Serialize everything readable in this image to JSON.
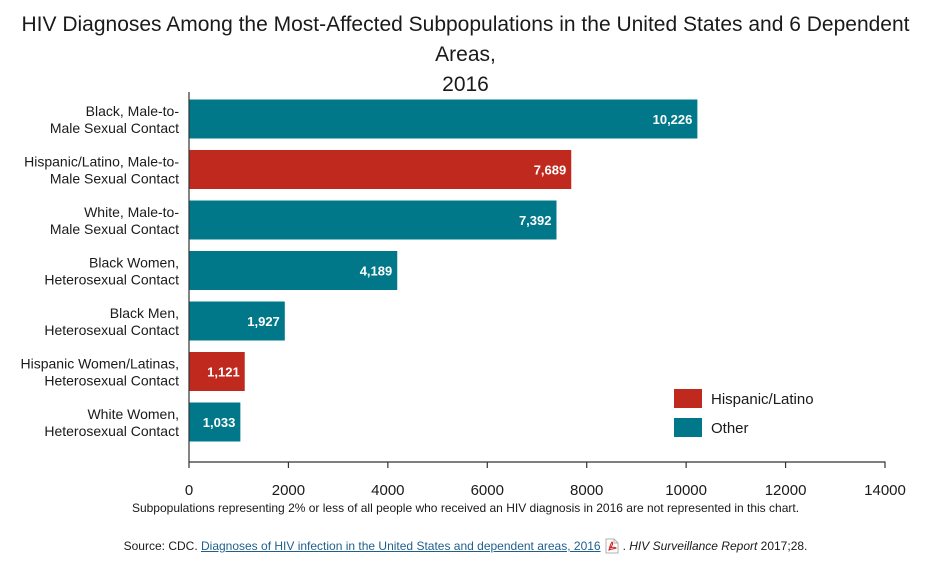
{
  "chart_data": {
    "type": "bar",
    "orientation": "horizontal",
    "title": "HIV Diagnoses Among the Most-Affected Subpopulations in the United States and 6 Dependent Areas, 2016",
    "categories": [
      "Black, Male-to-Male Sexual Contact",
      "Hispanic/Latino, Male-to-Male Sexual Contact",
      "White, Male-to-Male Sexual Contact",
      "Black Women, Heterosexual Contact",
      "Black Men, Heterosexual Contact",
      "Hispanic Women/Latinas, Heterosexual Contact",
      "White Women, Heterosexual Contact"
    ],
    "category_lines": [
      [
        "Black, Male-to-",
        "Male Sexual Contact"
      ],
      [
        "Hispanic/Latino, Male-to-",
        "Male Sexual Contact"
      ],
      [
        "White, Male-to-",
        "Male Sexual Contact"
      ],
      [
        "Black Women,",
        "Heterosexual Contact"
      ],
      [
        "Black Men,",
        "Heterosexual Contact"
      ],
      [
        "Hispanic Women/Latinas,",
        "Heterosexual Contact"
      ],
      [
        "White Women,",
        "Heterosexual Contact"
      ]
    ],
    "values": [
      10226,
      7689,
      7392,
      4189,
      1927,
      1121,
      1033
    ],
    "value_labels": [
      "10,226",
      "7,689",
      "7,392",
      "4,189",
      "1,927",
      "1,121",
      "1,033"
    ],
    "groups": [
      "Other",
      "Hispanic/Latino",
      "Other",
      "Other",
      "Other",
      "Hispanic/Latino",
      "Other"
    ],
    "legend": [
      {
        "name": "Hispanic/Latino",
        "color": "#c0291d"
      },
      {
        "name": "Other",
        "color": "#00788a"
      }
    ],
    "legend_position": "bottom-right",
    "xlim": [
      0,
      14000
    ],
    "xticks": [
      0,
      2000,
      4000,
      6000,
      8000,
      10000,
      12000,
      14000
    ],
    "xlabel": "",
    "ylabel": "",
    "grid": false
  },
  "footnote": "Subpopulations representing 2% or less of all people who received an HIV diagnosis in 2016 are not represented in this chart.",
  "source": {
    "prefix": "Source: CDC. ",
    "link_text": "Diagnoses of HIV infection in the United States and dependent areas, 2016",
    "pdf_icon": "pdf-icon",
    "suffix_sep": ". ",
    "journal": "HIV Surveillance Report",
    "citation": " 2017;28."
  }
}
